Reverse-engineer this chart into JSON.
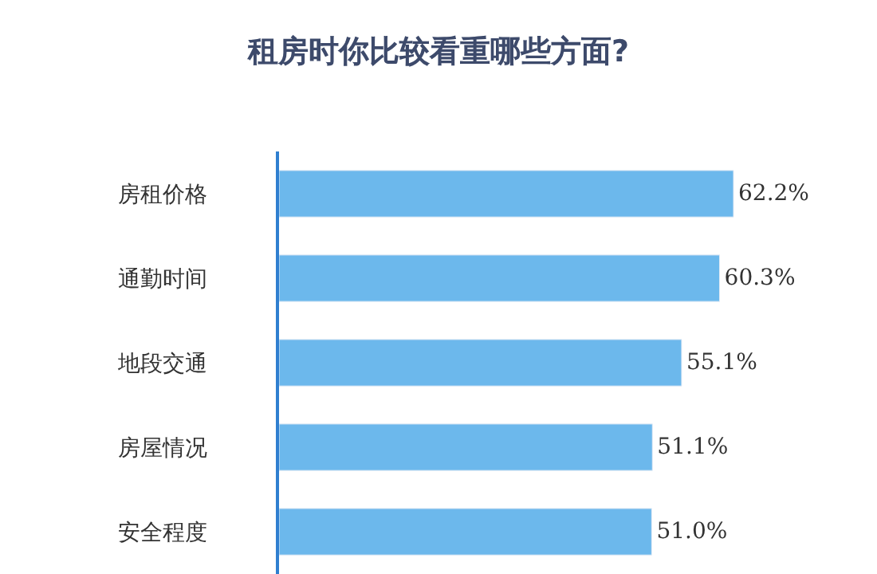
{
  "chart_data": {
    "type": "bar",
    "orientation": "horizontal",
    "title": "租房时你比较看重哪些方面?",
    "categories": [
      "房租价格",
      "通勤时间",
      "地段交通",
      "房屋情况",
      "安全程度"
    ],
    "values": [
      62.2,
      60.3,
      55.1,
      51.1,
      51.0
    ],
    "value_labels": [
      "62.2%",
      "60.3%",
      "55.1%",
      "51.1%",
      "51.0%"
    ],
    "color": "#6cb8ec",
    "tick_labels": "y"
  }
}
